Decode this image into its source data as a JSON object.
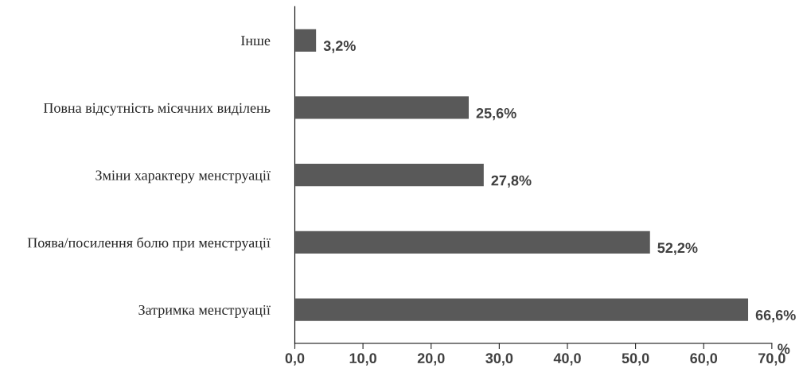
{
  "chart_data": {
    "type": "bar",
    "orientation": "horizontal",
    "categories": [
      "Інше",
      "Повна відсутність місячних виділень",
      "Зміни характеру менструації",
      "Поява/посилення болю при менструації",
      "Затримка менструації"
    ],
    "values": [
      3.2,
      25.6,
      27.8,
      52.2,
      66.6
    ],
    "value_labels": [
      "3,2%",
      "25,6%",
      "27,8%",
      "52,2%",
      "66,6%"
    ],
    "color": "#595959",
    "xlabel": "%",
    "xlim": [
      0,
      70
    ],
    "xticks": [
      {
        "value": 0,
        "label": "0,0"
      },
      {
        "value": 10,
        "label": "10,0"
      },
      {
        "value": 20,
        "label": "20,0"
      },
      {
        "value": 30,
        "label": "30,0"
      },
      {
        "value": 40,
        "label": "40,0"
      },
      {
        "value": 50,
        "label": "50,0"
      },
      {
        "value": 60,
        "label": "60,0"
      },
      {
        "value": 70,
        "label": "70,0"
      }
    ],
    "grid": false,
    "legend": false
  }
}
